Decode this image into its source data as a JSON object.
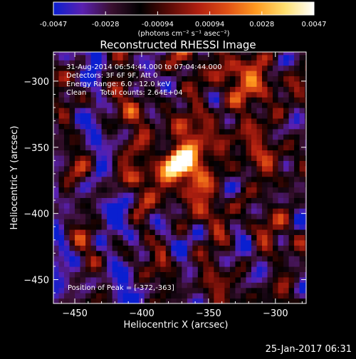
{
  "chart_data": {
    "type": "heatmap",
    "title": "Reconstructed RHESSI Image",
    "xlabel": "Heliocentric X (arcsec)",
    "ylabel": "Heliocentric Y (arcsec)",
    "xlim": [
      -466,
      -277
    ],
    "ylim": [
      -468,
      -278
    ],
    "x_ticks": [
      -450,
      -400,
      -350,
      -300
    ],
    "y_ticks": [
      -300,
      -350,
      -400,
      -450
    ],
    "colorbar": {
      "range": [
        -0.0047,
        0.0047
      ],
      "ticks": [
        "-0.0047",
        "-0.0028",
        "-0.00094",
        "0.00094",
        "0.0028",
        "0.0047"
      ],
      "units": "(photons cm⁻² s⁻¹ asec⁻²)",
      "colors": [
        "#0a1fd0",
        "#5a20b0",
        "#3a1030",
        "#000000",
        "#5a0a06",
        "#b01f10",
        "#e05015",
        "#ff9a20",
        "#ffe070",
        "#ffffff"
      ]
    },
    "annotations": [
      "31-Aug-2014 06:54:44.000 to 07:04:44.000",
      "Detectors: 3F 6F 9F, Att 0",
      "Energy Range: 6.0 - 12.0 keV",
      "Clean      Total counts: 2.64E+04"
    ],
    "peak_label": "Position of Peak = [-372,-363]",
    "peak": [
      -372,
      -363
    ],
    "secondary_source": [
      -330,
      -300
    ],
    "timestamp": "25-Jan-2017 06:31"
  }
}
